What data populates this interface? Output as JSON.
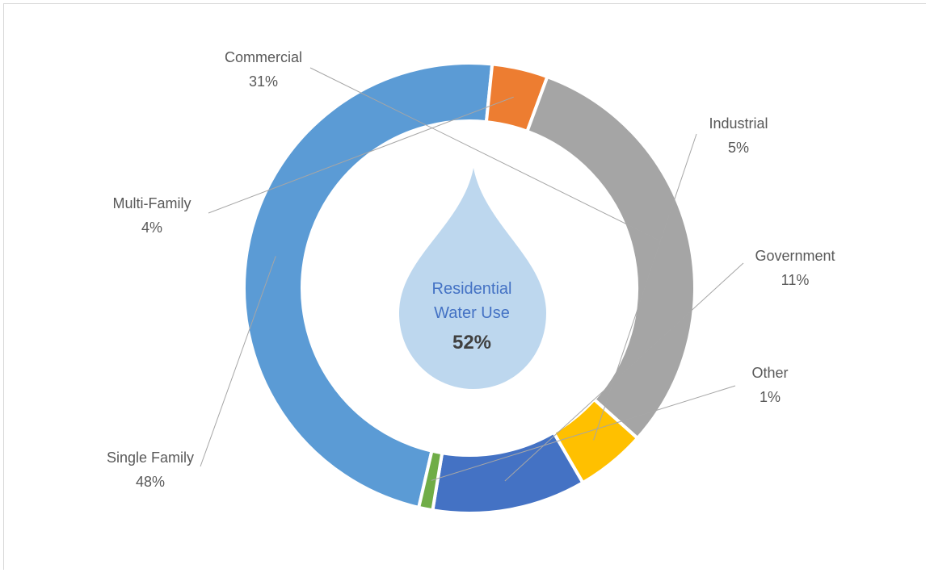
{
  "chart_data": {
    "type": "pie",
    "variant": "donut",
    "center_label": [
      "Residential",
      "Water Use"
    ],
    "center_value": "52%",
    "segments": [
      {
        "name": "Single Family",
        "value": 48,
        "label": "48%",
        "color": "#5b9bd5"
      },
      {
        "name": "Multi-Family",
        "value": 4,
        "label": "4%",
        "color": "#ed7d31"
      },
      {
        "name": "Commercial",
        "value": 31,
        "label": "31%",
        "color": "#a5a5a5"
      },
      {
        "name": "Industrial",
        "value": 5,
        "label": "5%",
        "color": "#ffc000"
      },
      {
        "name": "Government",
        "value": 11,
        "label": "11%",
        "color": "#4472c4"
      },
      {
        "name": "Other",
        "value": 1,
        "label": "1%",
        "color": "#70ad47"
      }
    ]
  },
  "colors": {
    "drop": "#bdd7ee",
    "center_text": "#4472c4",
    "label_text": "#595959",
    "leader_line": "#a6a6a6"
  }
}
